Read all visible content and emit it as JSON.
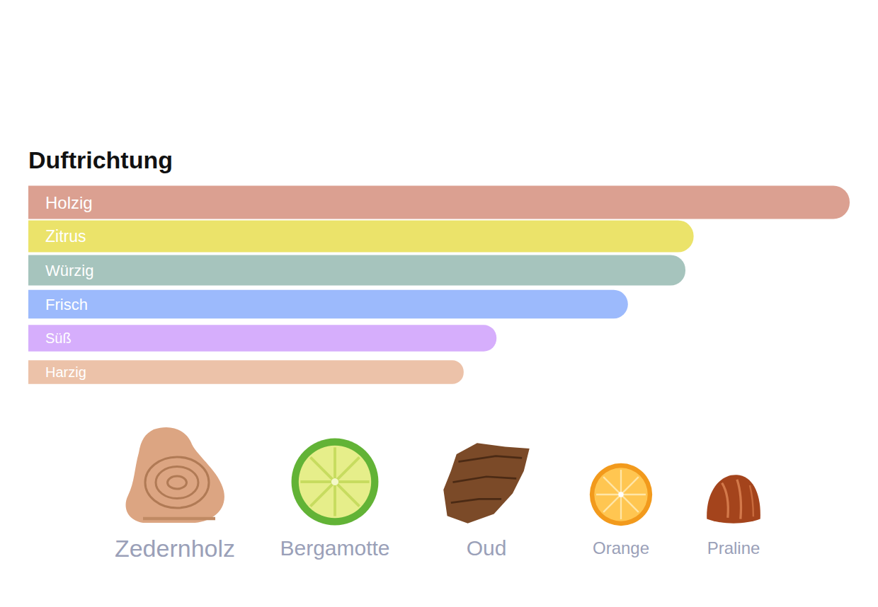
{
  "chart_data": {
    "type": "bar",
    "orientation": "horizontal",
    "title": "Duftrichtung",
    "categories": [
      "Holzig",
      "Zitrus",
      "Würzig",
      "Frisch",
      "Süß",
      "Harzig"
    ],
    "values": [
      100,
      81,
      80,
      73,
      57,
      53
    ],
    "colors": [
      "#dba091",
      "#ebe36a",
      "#a6c4bd",
      "#9cbafc",
      "#d6aefc",
      "#ecc2a9"
    ],
    "xlim": [
      0,
      100
    ],
    "grid": false,
    "tick_labels": false
  },
  "notes": [
    "Zedernholz",
    "Bergamotte",
    "Oud",
    "Orange",
    "Praline"
  ]
}
